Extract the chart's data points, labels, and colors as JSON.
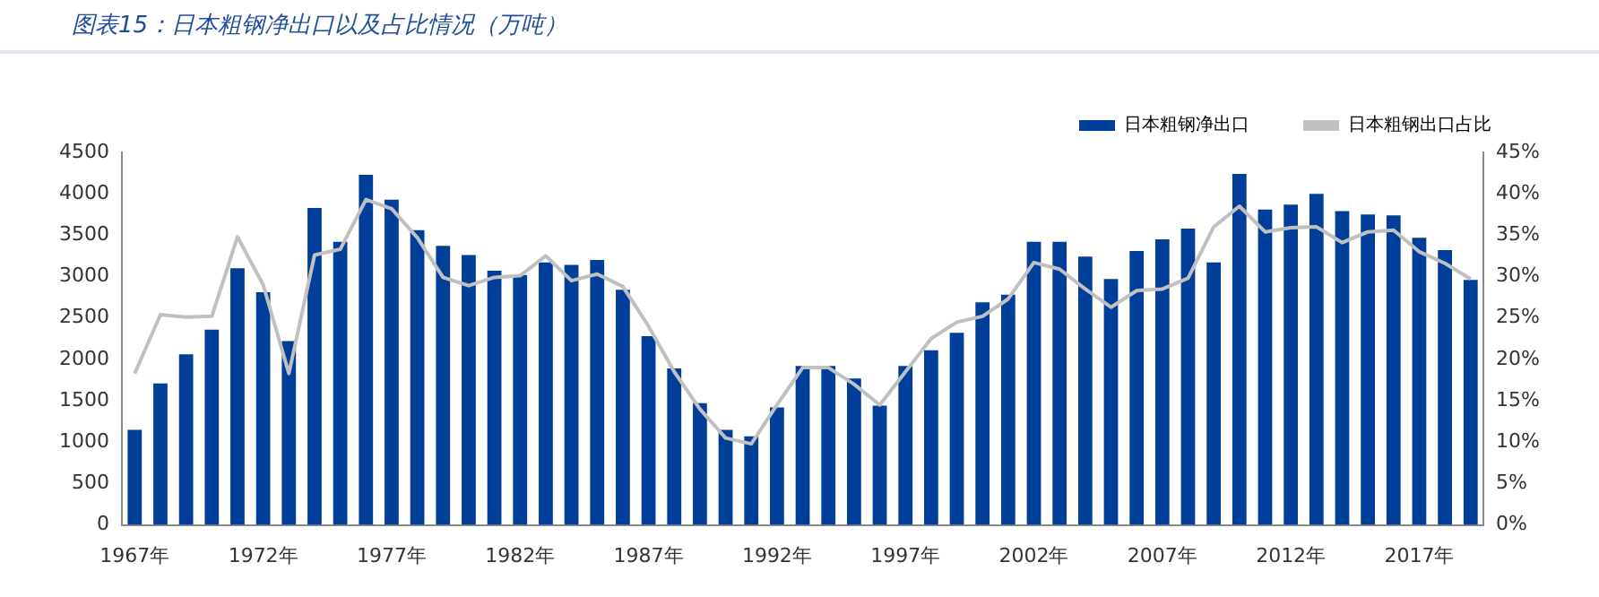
{
  "chart_data": {
    "type": "bar",
    "title": "图表15：日本粗钢净出口以及占比情况（万吨）",
    "categories": [
      "1967年",
      null,
      null,
      null,
      null,
      "1972年",
      null,
      null,
      null,
      null,
      "1977年",
      null,
      null,
      null,
      null,
      "1982年",
      null,
      null,
      null,
      null,
      "1987年",
      null,
      null,
      null,
      null,
      "1992年",
      null,
      null,
      null,
      null,
      "1997年",
      null,
      null,
      null,
      null,
      "2002年",
      null,
      null,
      null,
      null,
      "2007年",
      null,
      null,
      null,
      null,
      "2012年",
      null,
      null,
      null,
      null,
      "2017年",
      null,
      null
    ],
    "series": [
      {
        "name": "日本粗钢净出口",
        "color": "#003f99",
        "values": [
          1150,
          1710,
          2060,
          2360,
          3100,
          2810,
          2220,
          3830,
          3420,
          4230,
          3930,
          3560,
          3370,
          3260,
          3070,
          3020,
          3170,
          3140,
          3200,
          2840,
          2280,
          1890,
          1470,
          1150,
          1070,
          1420,
          1920,
          1920,
          1770,
          1440,
          1920,
          2110,
          2320,
          2690,
          2780,
          3420,
          3420,
          3240,
          2970,
          3310,
          3450,
          3580,
          3170,
          4240,
          3810,
          3870,
          4000,
          3790,
          3750,
          3740,
          3470,
          3320,
          2960
        ]
      },
      {
        "name": "日本粗钢出口占比",
        "type": "line",
        "axis": "y2",
        "color": "#c0c0c0",
        "values": [
          18.3,
          25.4,
          25.1,
          25.2,
          34.8,
          29,
          18.3,
          32.6,
          33.3,
          39.3,
          38.2,
          34.7,
          29.9,
          28.9,
          29.9,
          30.1,
          32.5,
          29.5,
          30.3,
          28.8,
          24,
          18.5,
          14,
          10.5,
          9.8,
          14.5,
          19,
          19,
          17,
          14.5,
          18.5,
          22.5,
          24.5,
          25.2,
          27.3,
          31.7,
          30.9,
          28.5,
          26.3,
          28.3,
          28.5,
          29.8,
          36,
          38.5,
          35.4,
          35.9,
          36,
          34.1,
          35.4,
          35.6,
          33,
          31.6,
          29.7
        ]
      }
    ],
    "ylim": [
      0,
      4500
    ],
    "yticks": [
      0,
      500,
      1000,
      1500,
      2000,
      2500,
      3000,
      3500,
      4000,
      4500
    ],
    "y2lim": [
      0,
      45
    ],
    "y2ticks": [
      {
        "value": 0,
        "label": "0%"
      },
      {
        "value": 5,
        "label": "5%"
      },
      {
        "value": 10,
        "label": "10%"
      },
      {
        "value": 15,
        "label": "15%"
      },
      {
        "value": 20,
        "label": "20%"
      },
      {
        "value": 25,
        "label": "25%"
      },
      {
        "value": 30,
        "label": "30%"
      },
      {
        "value": 35,
        "label": "35%"
      },
      {
        "value": 40,
        "label": "40%"
      },
      {
        "value": 45,
        "label": "45%"
      }
    ],
    "legend": "top right",
    "grid": false,
    "marker": "none"
  }
}
